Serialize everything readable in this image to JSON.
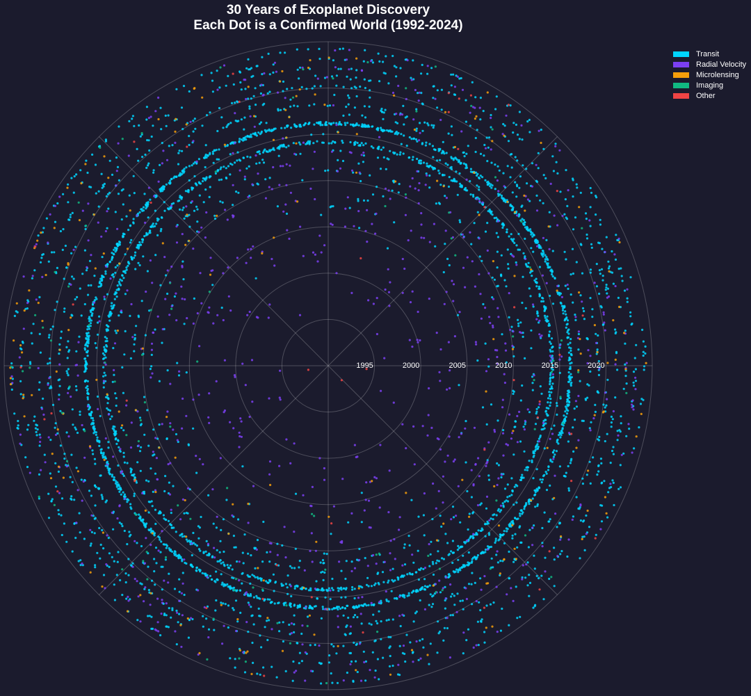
{
  "chart_data": {
    "type": "scatter",
    "projection": "polar",
    "title": "30 Years of Exoplanet Discovery",
    "subtitle": "Each Dot is a Confirmed World (1992-2024)",
    "radial_axis": {
      "quantity": "discovery year",
      "range": [
        1990,
        2025
      ],
      "ticks": [
        1995,
        2000,
        2005,
        2010,
        2015,
        2020
      ],
      "tick_labels": [
        "1995",
        "2000",
        "2005",
        "2010",
        "2015",
        "2020"
      ]
    },
    "angular_axis": {
      "gridlines_deg": [
        0,
        45,
        90,
        135,
        180,
        225,
        270,
        315
      ]
    },
    "grid": true,
    "legend_position": "top-right",
    "background": "#1b1b2d",
    "series": [
      {
        "name": "Transit",
        "color": "#00d5ff"
      },
      {
        "name": "Radial Velocity",
        "color": "#7b3ff2"
      },
      {
        "name": "Microlensing",
        "color": "#f59e0b"
      },
      {
        "name": "Imaging",
        "color": "#10b981"
      },
      {
        "name": "Other",
        "color": "#ef4444"
      }
    ],
    "discoveries_by_year": [
      {
        "year": 1992,
        "Transit": 0,
        "Radial Velocity": 0,
        "Microlensing": 0,
        "Imaging": 0,
        "Other": 2
      },
      {
        "year": 1993,
        "Transit": 0,
        "Radial Velocity": 0,
        "Microlensing": 0,
        "Imaging": 0,
        "Other": 0
      },
      {
        "year": 1994,
        "Transit": 0,
        "Radial Velocity": 0,
        "Microlensing": 0,
        "Imaging": 0,
        "Other": 1
      },
      {
        "year": 1995,
        "Transit": 0,
        "Radial Velocity": 1,
        "Microlensing": 0,
        "Imaging": 0,
        "Other": 0
      },
      {
        "year": 1996,
        "Transit": 0,
        "Radial Velocity": 6,
        "Microlensing": 0,
        "Imaging": 0,
        "Other": 0
      },
      {
        "year": 1997,
        "Transit": 0,
        "Radial Velocity": 1,
        "Microlensing": 0,
        "Imaging": 0,
        "Other": 0
      },
      {
        "year": 1998,
        "Transit": 0,
        "Radial Velocity": 6,
        "Microlensing": 0,
        "Imaging": 0,
        "Other": 0
      },
      {
        "year": 1999,
        "Transit": 0,
        "Radial Velocity": 13,
        "Microlensing": 0,
        "Imaging": 0,
        "Other": 0
      },
      {
        "year": 2000,
        "Transit": 0,
        "Radial Velocity": 16,
        "Microlensing": 0,
        "Imaging": 0,
        "Other": 0
      },
      {
        "year": 2001,
        "Transit": 0,
        "Radial Velocity": 12,
        "Microlensing": 0,
        "Imaging": 0,
        "Other": 0
      },
      {
        "year": 2002,
        "Transit": 1,
        "Radial Velocity": 28,
        "Microlensing": 0,
        "Imaging": 0,
        "Other": 1
      },
      {
        "year": 2003,
        "Transit": 1,
        "Radial Velocity": 22,
        "Microlensing": 1,
        "Imaging": 0,
        "Other": 0
      },
      {
        "year": 2004,
        "Transit": 5,
        "Radial Velocity": 20,
        "Microlensing": 2,
        "Imaging": 1,
        "Other": 0
      },
      {
        "year": 2005,
        "Transit": 4,
        "Radial Velocity": 30,
        "Microlensing": 1,
        "Imaging": 1,
        "Other": 0
      },
      {
        "year": 2006,
        "Transit": 10,
        "Radial Velocity": 20,
        "Microlensing": 3,
        "Imaging": 2,
        "Other": 0
      },
      {
        "year": 2007,
        "Transit": 20,
        "Radial Velocity": 30,
        "Microlensing": 2,
        "Imaging": 1,
        "Other": 1
      },
      {
        "year": 2008,
        "Transit": 22,
        "Radial Velocity": 35,
        "Microlensing": 4,
        "Imaging": 4,
        "Other": 0
      },
      {
        "year": 2009,
        "Transit": 20,
        "Radial Velocity": 55,
        "Microlensing": 3,
        "Imaging": 2,
        "Other": 1
      },
      {
        "year": 2010,
        "Transit": 55,
        "Radial Velocity": 40,
        "Microlensing": 6,
        "Imaging": 5,
        "Other": 1
      },
      {
        "year": 2011,
        "Transit": 100,
        "Radial Velocity": 45,
        "Microlensing": 8,
        "Imaging": 4,
        "Other": 1
      },
      {
        "year": 2012,
        "Transit": 90,
        "Radial Velocity": 40,
        "Microlensing": 6,
        "Imaging": 5,
        "Other": 2
      },
      {
        "year": 2013,
        "Transit": 120,
        "Radial Velocity": 35,
        "Microlensing": 8,
        "Imaging": 5,
        "Other": 2
      },
      {
        "year": 2014,
        "Transit": 800,
        "Radial Velocity": 30,
        "Microlensing": 8,
        "Imaging": 5,
        "Other": 2
      },
      {
        "year": 2015,
        "Transit": 110,
        "Radial Velocity": 25,
        "Microlensing": 10,
        "Imaging": 6,
        "Other": 2
      },
      {
        "year": 2016,
        "Transit": 1200,
        "Radial Velocity": 30,
        "Microlensing": 10,
        "Imaging": 6,
        "Other": 3
      },
      {
        "year": 2017,
        "Transit": 110,
        "Radial Velocity": 35,
        "Microlensing": 12,
        "Imaging": 6,
        "Other": 2
      },
      {
        "year": 2018,
        "Transit": 220,
        "Radial Velocity": 40,
        "Microlensing": 15,
        "Imaging": 6,
        "Other": 3
      },
      {
        "year": 2019,
        "Transit": 130,
        "Radial Velocity": 35,
        "Microlensing": 15,
        "Imaging": 6,
        "Other": 3
      },
      {
        "year": 2020,
        "Transit": 180,
        "Radial Velocity": 40,
        "Microlensing": 16,
        "Imaging": 6,
        "Other": 3
      },
      {
        "year": 2021,
        "Transit": 170,
        "Radial Velocity": 45,
        "Microlensing": 18,
        "Imaging": 7,
        "Other": 4
      },
      {
        "year": 2022,
        "Transit": 180,
        "Radial Velocity": 45,
        "Microlensing": 20,
        "Imaging": 7,
        "Other": 4
      },
      {
        "year": 2023,
        "Transit": 160,
        "Radial Velocity": 40,
        "Microlensing": 22,
        "Imaging": 7,
        "Other": 4
      },
      {
        "year": 2024,
        "Transit": 150,
        "Radial Velocity": 40,
        "Microlensing": 22,
        "Imaging": 7,
        "Other": 4
      }
    ]
  }
}
